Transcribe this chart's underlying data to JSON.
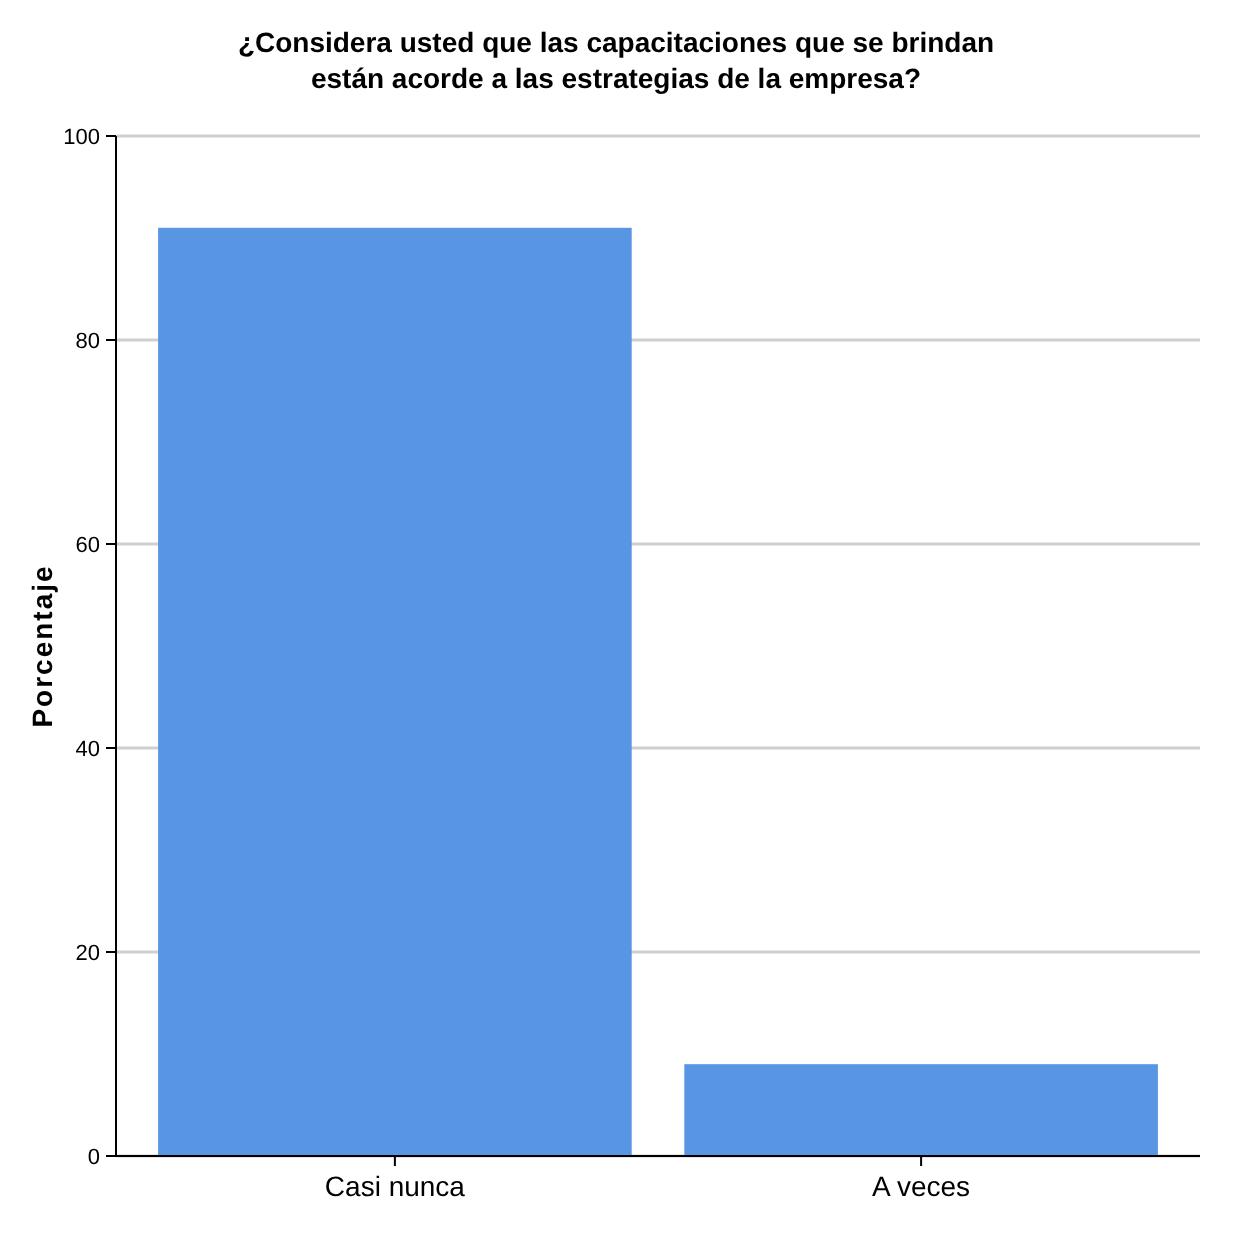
{
  "chart_data": {
    "type": "bar",
    "title": "¿Considera usted que las capacitaciones que se brindan están acorde a las estrategias de la empresa?",
    "ylabel": "Porcentaje",
    "categories": [
      "Casi nunca",
      "A veces"
    ],
    "values": [
      91,
      9
    ],
    "color": "#5895e3",
    "ylim": [
      0,
      100
    ],
    "yticks": [
      0,
      20,
      40,
      60,
      80,
      100
    ],
    "grid": "y"
  }
}
